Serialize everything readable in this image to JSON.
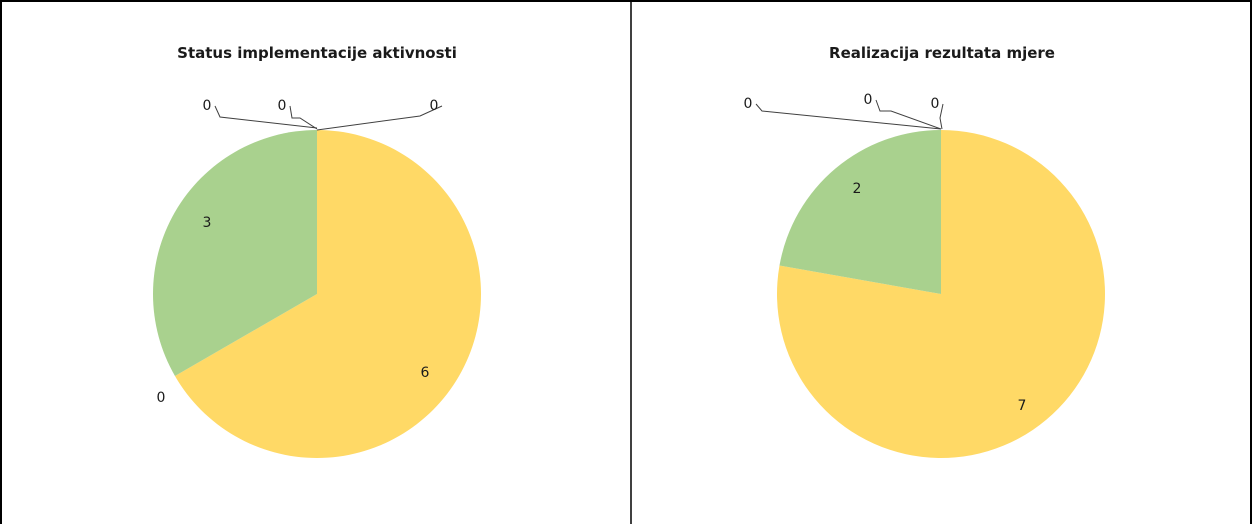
{
  "chart_data": [
    {
      "type": "pie",
      "title": "Status implementacije aktivnosti",
      "categories": [
        "",
        "",
        "",
        "",
        "",
        ""
      ],
      "values": [
        6,
        0,
        3,
        0,
        0,
        0
      ],
      "labels": [
        "6",
        "0",
        "3",
        "0",
        "0",
        "0"
      ],
      "colors": [
        "#FFD966",
        "#9DC3E6",
        "#A9D18E",
        "#F4B183",
        "#C9C9C9",
        "#8FAADC"
      ],
      "legend": false
    },
    {
      "type": "pie",
      "title": "Realizacija rezultata mjere",
      "categories": [
        "",
        "",
        "",
        "",
        ""
      ],
      "values": [
        7,
        2,
        0,
        0,
        0
      ],
      "labels": [
        "7",
        "2",
        "0",
        "0",
        "0"
      ],
      "colors": [
        "#FFD966",
        "#A9D18E",
        "#F4B183",
        "#C9C9C9",
        "#8FAADC"
      ],
      "legend": false
    }
  ]
}
